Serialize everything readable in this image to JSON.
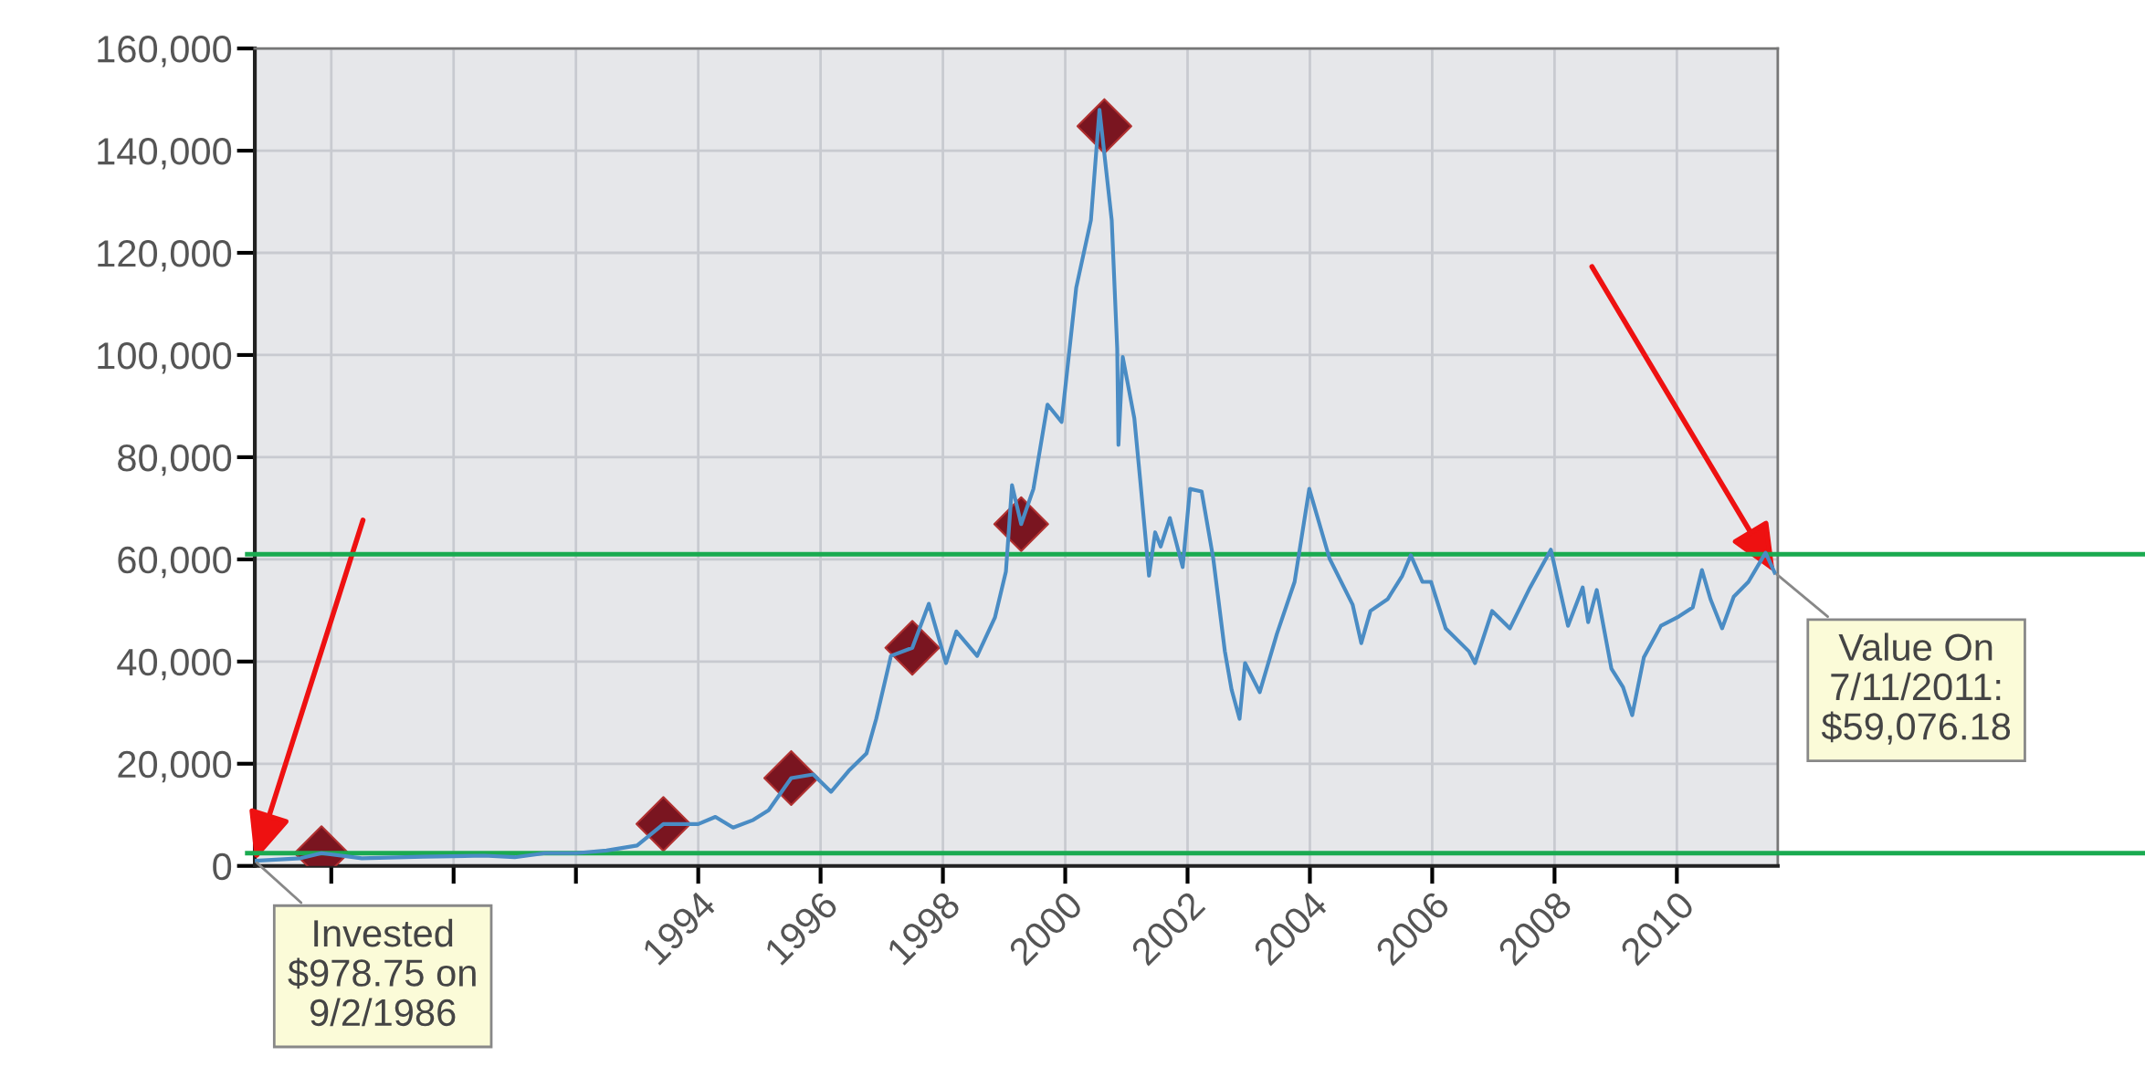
{
  "chart_data": {
    "type": "line",
    "series": [
      {
        "color": "#4a8cc4",
        "marker": "none",
        "line_style": "solid",
        "x": [
          1986.75,
          1987.5,
          1987.84,
          1988.5,
          1989.5,
          1990.5,
          1991,
          1991.5,
          1992,
          1992.5,
          1993,
          1993.43,
          1994.0,
          1994.28,
          1994.57,
          1994.9,
          1995.15,
          1995.52,
          1995.88,
          1996.17,
          1996.46,
          1996.75,
          1996.91,
          1997.15,
          1997.5,
          1997.77,
          1998.05,
          1998.22,
          1998.56,
          1998.85,
          1999.03,
          1999.13,
          1999.28,
          1999.48,
          1999.71,
          1999.94,
          2000.18,
          2000.42,
          2000.56,
          2000.76,
          2000.85,
          2000.87,
          2000.94,
          2001.13,
          2001.23,
          2001.37,
          2001.47,
          2001.56,
          2001.71,
          2001.92,
          2002.04,
          2002.23,
          2002.42,
          2002.61,
          2002.72,
          2002.85,
          2002.94,
          2003.18,
          2003.46,
          2003.75,
          2003.99,
          2004.32,
          2004.7,
          2004.84,
          2004.99,
          2005.27,
          2005.51,
          2005.65,
          2005.84,
          2005.98,
          2006.22,
          2006.6,
          2006.7,
          2006.98,
          2007.27,
          2007.6,
          2007.94,
          2008.22,
          2008.46,
          2008.55,
          2008.69,
          2008.93,
          2009.12,
          2009.27,
          2009.46,
          2009.74,
          2010.03,
          2010.26,
          2010.41,
          2010.55,
          2010.74,
          2010.93,
          2011.17,
          2011.45,
          2011.6
        ],
        "values": [
          1000,
          1500,
          2500,
          1500,
          1800,
          2000,
          1700,
          2500,
          2500,
          3000,
          4000,
          8200,
          8200,
          9600,
          7500,
          9000,
          10900,
          17200,
          17900,
          14500,
          18600,
          22000,
          28800,
          41100,
          42700,
          51300,
          39700,
          45900,
          41100,
          48600,
          57600,
          74500,
          66900,
          73800,
          90300,
          86900,
          113200,
          126400,
          148000,
          126400,
          101200,
          82400,
          99600,
          87600,
          75000,
          56800,
          65300,
          62500,
          68100,
          58500,
          73800,
          73300,
          60200,
          42000,
          34500,
          28800,
          39700,
          34000,
          45400,
          55600,
          73800,
          60200,
          51100,
          43600,
          49900,
          52200,
          56800,
          60800,
          55600,
          55600,
          46500,
          42000,
          39700,
          49900,
          46500,
          54500,
          61900,
          47000,
          54500,
          47700,
          54000,
          38600,
          35000,
          29500,
          40800,
          47000,
          48800,
          50600,
          57900,
          52200,
          46500,
          52700,
          55600,
          61300,
          57400
        ]
      },
      {
        "type": "scatter",
        "color": "#7a1520",
        "marker": "diamond",
        "x": [
          1987.84,
          1993.43,
          1995.52,
          1997.5,
          1999.28,
          2000.64
        ],
        "values": [
          2500,
          8200,
          17200,
          42700,
          66900,
          144800
        ]
      }
    ],
    "xlim": [
      1986.75,
      2011.65
    ],
    "xticks": [
      {
        "value": 1988,
        "label": null
      },
      {
        "value": 1990,
        "label": null
      },
      {
        "value": 1992,
        "label": null
      },
      1994,
      1996,
      1998,
      2000,
      2002,
      2004,
      2006,
      2008,
      2010
    ],
    "ylim": [
      0,
      160000
    ],
    "yticks": [
      0,
      {
        "value": 20000,
        "label": "20,000"
      },
      {
        "value": 40000,
        "label": "40,000"
      },
      {
        "value": 60000,
        "label": "60,000"
      },
      {
        "value": 80000,
        "label": "80,000"
      },
      {
        "value": 100000,
        "label": "100,000"
      },
      {
        "value": 120000,
        "label": "120,000"
      },
      {
        "value": 140000,
        "label": "140,000"
      },
      {
        "value": 160000,
        "label": "160,000"
      }
    ],
    "grid": true,
    "ref_lines": [
      {
        "axis": "y",
        "value": 61000,
        "color": "#1aaa50"
      },
      {
        "axis": "y",
        "value": 2500,
        "color": "#1aaa50"
      }
    ],
    "annotations": [
      {
        "text": "Invested\n$978.75 on\n9/2/1986",
        "x": 1986.75,
        "y": 979
      },
      {
        "text": "Value On\n7/11/2011:\n$59,076.18",
        "x": 2011.6,
        "y": 57400
      }
    ]
  }
}
